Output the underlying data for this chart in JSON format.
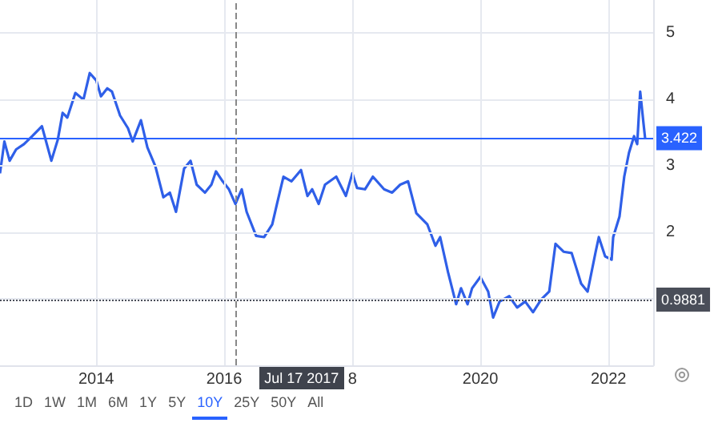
{
  "chart_data": {
    "type": "line",
    "x": [
      "2012-07-01",
      "2012-07-26",
      "2012-08-25",
      "2012-10-01",
      "2012-11-15",
      "2013-01-01",
      "2013-02-25",
      "2013-04-20",
      "2013-05-27",
      "2013-06-23",
      "2013-07-20",
      "2013-09-04",
      "2013-10-20",
      "2013-11-25",
      "2014-01-01",
      "2014-01-28",
      "2014-03-05",
      "2014-04-01",
      "2014-05-17",
      "2014-07-01",
      "2014-07-28",
      "2014-09-13",
      "2014-10-20",
      "2014-12-04",
      "2015-01-19",
      "2015-02-25",
      "2015-04-01",
      "2015-05-17",
      "2015-06-23",
      "2015-07-28",
      "2015-09-13",
      "2015-10-20",
      "2015-11-15",
      "2015-12-23",
      "2016-01-28",
      "2016-03-05",
      "2016-04-10",
      "2016-05-08",
      "2016-07-01",
      "2016-08-16",
      "2016-10-01",
      "2016-10-28",
      "2016-12-04",
      "2017-01-19",
      "2017-03-14",
      "2017-04-20",
      "2017-05-17",
      "2017-06-23",
      "2017-07-29",
      "2017-10-01",
      "2017-11-25",
      "2018-01-01",
      "2018-01-28",
      "2018-03-14",
      "2018-04-28",
      "2018-07-01",
      "2018-08-16",
      "2018-10-01",
      "2018-11-15",
      "2019-01-01",
      "2019-03-05",
      "2019-04-20",
      "2019-05-17",
      "2019-07-01",
      "2019-08-16",
      "2019-09-13",
      "2019-10-20",
      "2019-11-15",
      "2020-01-01",
      "2020-02-15",
      "2020-03-14",
      "2020-04-20",
      "2020-06-14",
      "2020-07-29",
      "2020-09-13",
      "2020-10-28",
      "2020-12-13",
      "2021-01-28",
      "2021-03-05",
      "2021-04-20",
      "2021-06-05",
      "2021-07-01",
      "2021-07-29",
      "2021-09-04",
      "2021-10-20",
      "2021-11-07",
      "2021-12-13",
      "2022-01-19",
      "2022-01-28",
      "2022-03-05",
      "2022-04-01",
      "2022-04-28",
      "2022-05-27",
      "2022-06-14",
      "2022-07-01",
      "2022-07-20",
      "2022-07-29"
    ],
    "series": [
      {
        "color": "#2f5fe8",
        "values": [
          2.89,
          3.37,
          3.08,
          3.25,
          3.33,
          3.45,
          3.6,
          3.08,
          3.4,
          3.8,
          3.73,
          4.1,
          4.0,
          4.4,
          4.29,
          4.05,
          4.17,
          4.12,
          3.76,
          3.57,
          3.37,
          3.69,
          3.28,
          3.0,
          2.53,
          2.6,
          2.31,
          2.96,
          3.08,
          2.72,
          2.6,
          2.72,
          2.92,
          2.77,
          2.65,
          2.43,
          2.65,
          2.31,
          1.95,
          1.93,
          2.12,
          2.43,
          2.84,
          2.77,
          2.94,
          2.55,
          2.65,
          2.43,
          2.72,
          2.84,
          2.55,
          2.89,
          2.67,
          2.65,
          2.84,
          2.65,
          2.6,
          2.72,
          2.77,
          2.29,
          2.12,
          1.8,
          1.93,
          1.4,
          0.92,
          1.16,
          0.92,
          1.16,
          1.33,
          1.11,
          0.72,
          0.96,
          1.04,
          0.87,
          0.96,
          0.8,
          0.99,
          1.11,
          1.83,
          1.71,
          1.69,
          1.47,
          1.23,
          1.11,
          1.71,
          1.93,
          1.64,
          1.59,
          1.93,
          2.24,
          2.84,
          3.2,
          3.45,
          3.33,
          4.12,
          3.64,
          3.42
        ]
      }
    ],
    "xlim": [
      "2012-07-01",
      "2022-09-13"
    ],
    "xticks": [
      {
        "value": "2014",
        "label": "2014"
      },
      {
        "value": "2016",
        "label": "2016"
      },
      {
        "value": "2018",
        "label": "8"
      },
      {
        "value": "2020",
        "label": "2020"
      },
      {
        "value": "2022",
        "label": "2022"
      }
    ],
    "ylim": [
      0,
      5.5
    ],
    "yticks": [
      {
        "value": 1,
        "label": null
      },
      2,
      3,
      4,
      5
    ],
    "grid": true,
    "marker": "none",
    "line_style": "solid",
    "ref_lines": [
      {
        "axis": "y",
        "value": 3.422,
        "label": "3.422",
        "color": "#2962ff"
      },
      {
        "axis": "y",
        "value": 0.9881,
        "label": "0.9881",
        "color": "#4a4e59",
        "line_style": "dotted"
      },
      {
        "axis": "x",
        "value": "2016-03-05",
        "color": "#888888",
        "line_style": "dashed"
      }
    ],
    "annotations": [
      "Jul 17 2017",
      "1D",
      "1W",
      "1M",
      "6M",
      "1Y",
      "5Y",
      "10Y",
      "25Y",
      "50Y",
      "All"
    ]
  }
}
